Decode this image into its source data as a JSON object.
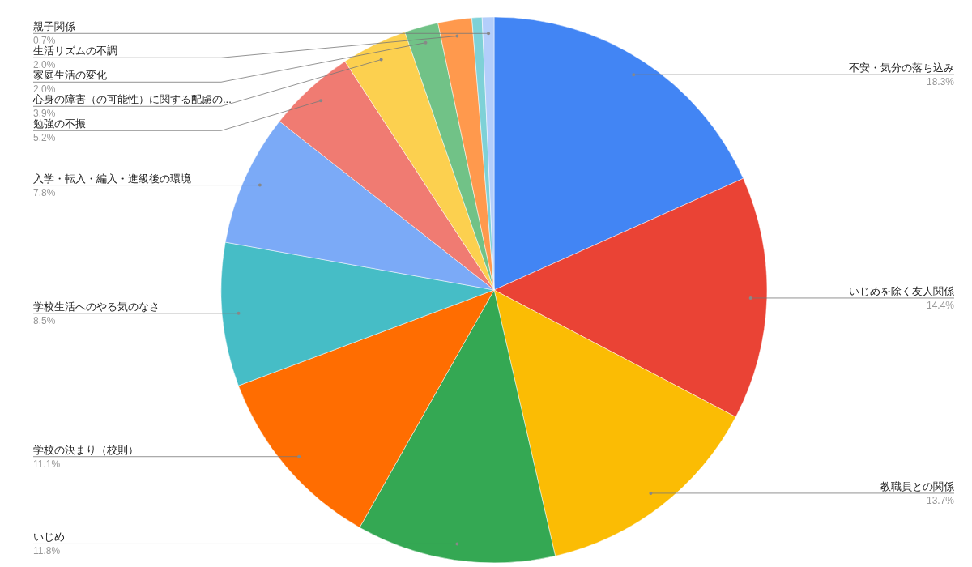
{
  "chart_data": {
    "type": "pie",
    "categories": [
      "不安・気分の落ち込み",
      "いじめを除く友人関係",
      "教職員との関係",
      "いじめ",
      "学校の決まり（校則）",
      "学校生活へのやる気のなさ",
      "入学・転入・編入・進級後の環境",
      "勉強の不振",
      "心身の障害（の可能性）に関する配慮の...",
      "家庭生活の変化",
      "生活リズムの不調",
      null,
      "親子関係"
    ],
    "values": [
      18.3,
      14.4,
      13.7,
      11.8,
      11.1,
      8.5,
      7.8,
      5.2,
      3.9,
      2.0,
      2.0,
      0.6,
      0.7
    ],
    "value_labels": [
      "18.3%",
      "14.4%",
      "13.7%",
      "11.8%",
      "11.1%",
      "8.5%",
      "7.8%",
      "5.2%",
      "3.9%",
      "2.0%",
      "2.0%",
      null,
      "0.7%"
    ],
    "colors": [
      "#4285f4",
      "#ea4335",
      "#fbbc04",
      "#34a853",
      "#ff6d01",
      "#46bdc6",
      "#7baaf7",
      "#f07b72",
      "#fcd04f",
      "#71c287",
      "#ff994d",
      "#7ed1d7",
      "#b3cefb"
    ]
  }
}
